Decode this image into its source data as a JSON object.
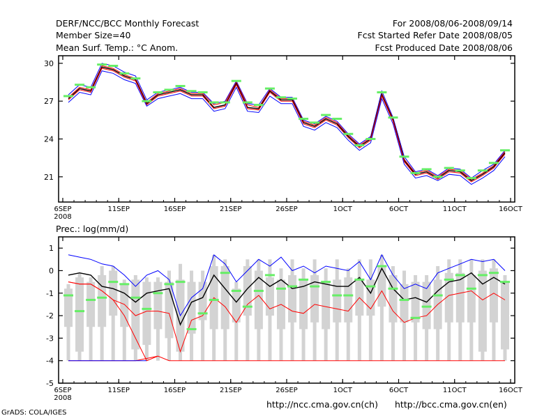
{
  "header": {
    "title": "DERF/NCC/BCC Monthly Forecast",
    "member_size": "Member Size=40",
    "variable": "Mean Surf. Temp.: °C Anom.",
    "period": "For 2008/08/06-2008/09/14",
    "started": "Fcst Started Refer Date 2008/08/05",
    "produced": "Fcst Produced Date 2008/08/06"
  },
  "footer": {
    "credit": "GrADS: COLA/IGES",
    "url_ncc": "http://ncc.cma.gov.cn(ch)",
    "url_bcc": "http://bcc.cma.gov.cn(en)"
  },
  "colors": {
    "mean_line": "#000000",
    "upper_line": "#0000ff",
    "lower_line": "#ff0000",
    "marker": "#66ee66",
    "box": "#d3d3d3"
  },
  "chart_data": [
    {
      "type": "line",
      "title": "Mean Surf. Temp.: °C Anom.",
      "xlabel": "",
      "ylabel": "",
      "days": 40,
      "x_ticks": [
        {
          "day": 0,
          "label": "6SEP",
          "sub": "2008"
        },
        {
          "day": 5,
          "label": "11SEP"
        },
        {
          "day": 10,
          "label": "16SEP"
        },
        {
          "day": 15,
          "label": "21SEP"
        },
        {
          "day": 20,
          "label": "26SEP"
        },
        {
          "day": 25,
          "label": "1OCT"
        },
        {
          "day": 30,
          "label": "6OCT"
        },
        {
          "day": 35,
          "label": "11OCT"
        },
        {
          "day": 40,
          "label": "16OCT"
        }
      ],
      "y_ticks": [
        21,
        24,
        27,
        30
      ],
      "ylim": [
        19.0,
        30.6
      ],
      "series": [
        {
          "name": "upper",
          "color": "#0000ff",
          "values": [
            27.5,
            28.3,
            28.1,
            30.0,
            29.8,
            29.3,
            29.0,
            27.1,
            27.7,
            27.9,
            28.1,
            27.7,
            27.7,
            26.8,
            27.0,
            28.6,
            26.8,
            26.7,
            28.0,
            27.3,
            27.3,
            25.5,
            25.2,
            25.8,
            25.4,
            24.4,
            23.6,
            24.2,
            27.8,
            25.7,
            22.6,
            21.4,
            21.6,
            21.1,
            21.7,
            21.6,
            20.9,
            21.5,
            22.0,
            23.1
          ]
        },
        {
          "name": "mean_upper",
          "color": "#ff0000",
          "values": [
            27.3,
            28.1,
            27.9,
            29.8,
            29.6,
            29.1,
            28.8,
            26.9,
            27.6,
            27.8,
            28.0,
            27.6,
            27.6,
            26.7,
            26.9,
            28.5,
            26.7,
            26.5,
            27.9,
            27.2,
            27.2,
            25.4,
            25.1,
            25.7,
            25.3,
            24.3,
            23.5,
            24.1,
            27.6,
            25.6,
            22.4,
            21.3,
            21.5,
            21.0,
            21.6,
            21.5,
            20.8,
            21.3,
            21.9,
            23.0
          ]
        },
        {
          "name": "mean",
          "color": "#000000",
          "values": [
            27.2,
            28.0,
            27.8,
            29.7,
            29.5,
            29.0,
            28.7,
            26.8,
            27.5,
            27.7,
            27.9,
            27.5,
            27.5,
            26.5,
            26.7,
            28.4,
            26.5,
            26.4,
            27.8,
            27.1,
            27.1,
            25.3,
            25.0,
            25.6,
            25.2,
            24.2,
            23.4,
            24.0,
            27.5,
            25.5,
            22.3,
            21.2,
            21.4,
            20.9,
            21.5,
            21.4,
            20.7,
            21.2,
            21.8,
            22.9
          ]
        },
        {
          "name": "mean_lower",
          "color": "#ff0000",
          "values": [
            27.1,
            27.9,
            27.7,
            29.6,
            29.4,
            28.9,
            28.6,
            26.7,
            27.4,
            27.6,
            27.8,
            27.4,
            27.4,
            26.4,
            26.6,
            28.3,
            26.4,
            26.3,
            27.7,
            27.0,
            27.0,
            25.2,
            24.9,
            25.5,
            25.1,
            24.1,
            23.3,
            23.9,
            27.4,
            25.4,
            22.2,
            21.1,
            21.3,
            20.8,
            21.4,
            21.3,
            20.6,
            21.1,
            21.7,
            22.8
          ]
        },
        {
          "name": "lower",
          "color": "#0000ff",
          "values": [
            26.9,
            27.7,
            27.5,
            29.4,
            29.2,
            28.7,
            28.4,
            26.6,
            27.2,
            27.4,
            27.6,
            27.2,
            27.2,
            26.2,
            26.4,
            28.1,
            26.2,
            26.1,
            27.4,
            26.8,
            26.8,
            25.0,
            24.7,
            25.3,
            24.9,
            23.9,
            23.1,
            23.7,
            27.2,
            25.2,
            22.0,
            20.9,
            21.1,
            20.7,
            21.2,
            21.1,
            20.4,
            20.9,
            21.5,
            22.6
          ]
        }
      ],
      "markers": [
        27.4,
        28.3,
        28.1,
        29.9,
        29.8,
        29.2,
        28.8,
        27.0,
        27.7,
        27.9,
        28.2,
        27.8,
        27.7,
        26.9,
        26.9,
        28.6,
        26.9,
        26.7,
        28.0,
        27.3,
        27.2,
        25.6,
        25.3,
        25.9,
        25.6,
        24.4,
        23.5,
        24.0,
        27.7,
        25.7,
        22.6,
        21.3,
        21.6,
        21.0,
        21.7,
        21.5,
        20.9,
        21.5,
        22.1,
        23.1
      ]
    },
    {
      "type": "line",
      "title": "Prec.: log(mm/d)",
      "xlabel": "",
      "ylabel": "",
      "days": 40,
      "x_ticks": [
        {
          "day": 0,
          "label": "6SEP",
          "sub": "2008"
        },
        {
          "day": 5,
          "label": "11SEP"
        },
        {
          "day": 10,
          "label": "16SEP"
        },
        {
          "day": 15,
          "label": "21SEP"
        },
        {
          "day": 20,
          "label": "26SEP"
        },
        {
          "day": 25,
          "label": "1OCT"
        },
        {
          "day": 30,
          "label": "6OCT"
        },
        {
          "day": 35,
          "label": "11OCT"
        },
        {
          "day": 40,
          "label": "16OCT"
        }
      ],
      "y_ticks": [
        -5,
        -4,
        -3,
        -2,
        -1,
        0,
        1
      ],
      "ylim": [
        -5,
        1.5
      ],
      "boxes": {
        "whisker_low": [
          -4.0,
          -4.0,
          -4.0,
          -4.0,
          -4.0,
          -4.0,
          -4.0,
          -4.0,
          -4.0,
          -4.0,
          -4.0,
          -4.0,
          -4.0,
          -4.0,
          -4.0,
          -4.0,
          -4.0,
          -4.0,
          -4.0,
          -4.0,
          -4.0,
          -4.0,
          -4.0,
          -4.0,
          -4.0,
          -4.0,
          -4.0,
          -4.0,
          -4.0,
          -4.0,
          -4.0,
          -4.0,
          -4.0,
          -4.0,
          -4.0,
          -4.0,
          -4.0,
          -4.0,
          -4.0,
          -4.0
        ],
        "box_low": [
          -2.5,
          -3.6,
          -2.5,
          -2.5,
          -2.0,
          -2.5,
          -3.5,
          -3.3,
          -2.6,
          -3.0,
          -3.6,
          -2.8,
          -2.2,
          -2.6,
          -2.6,
          -2.3,
          -2.0,
          -2.6,
          -2.0,
          -2.6,
          -2.3,
          -2.6,
          -2.3,
          -2.6,
          -2.3,
          -2.3,
          -2.0,
          -2.0,
          -1.6,
          -2.3,
          -2.3,
          -2.3,
          -2.6,
          -2.6,
          -2.3,
          -2.3,
          -2.3,
          -3.6,
          -2.3,
          -3.5
        ],
        "box_high": [
          -0.8,
          -0.3,
          -0.5,
          -0.2,
          0.0,
          -0.6,
          -0.4,
          -0.5,
          -0.5,
          -0.5,
          -0.4,
          -0.5,
          -0.5,
          0.2,
          0.2,
          -0.8,
          0.2,
          0.0,
          -0.3,
          -0.4,
          -0.2,
          -0.4,
          -0.2,
          -0.5,
          -0.4,
          -0.3,
          -0.4,
          -0.4,
          0.2,
          -0.2,
          -0.6,
          -0.5,
          -0.5,
          -0.4,
          -0.1,
          -0.1,
          -0.2,
          0.0,
          0.1,
          -0.5
        ],
        "whisker_high": [
          -0.6,
          -0.1,
          -0.3,
          0.2,
          0.2,
          -0.4,
          -0.2,
          -0.3,
          -0.3,
          0.0,
          0.3,
          0.0,
          0.0,
          0.7,
          0.5,
          -0.5,
          0.5,
          0.5,
          0.5,
          0.1,
          0.5,
          0.1,
          0.5,
          0.1,
          0.5,
          0.1,
          0.5,
          0.5,
          0.7,
          0.2,
          0.0,
          -0.2,
          -0.2,
          0.2,
          0.5,
          0.5,
          0.5,
          0.5,
          0.5,
          -0.2
        ]
      },
      "series": [
        {
          "name": "upper",
          "color": "#0000ff",
          "values": [
            0.7,
            0.6,
            0.5,
            0.3,
            0.2,
            -0.2,
            -0.7,
            -0.2,
            0.0,
            -0.4,
            -2.0,
            -1.2,
            -0.8,
            0.7,
            0.3,
            -0.5,
            0.0,
            0.5,
            0.2,
            0.6,
            0.0,
            0.2,
            -0.1,
            0.2,
            0.1,
            0.0,
            0.4,
            -0.4,
            0.7,
            -0.2,
            -0.8,
            -0.6,
            -0.8,
            -0.1,
            0.1,
            0.3,
            0.5,
            0.4,
            0.5,
            0.0
          ]
        },
        {
          "name": "mean",
          "color": "#000000",
          "values": [
            -0.2,
            -0.1,
            -0.2,
            -0.7,
            -0.8,
            -1.0,
            -1.4,
            -1.0,
            -0.9,
            -0.8,
            -2.4,
            -1.4,
            -1.2,
            -0.2,
            -0.8,
            -1.4,
            -0.8,
            -0.3,
            -0.7,
            -0.4,
            -0.8,
            -0.7,
            -0.5,
            -0.6,
            -0.7,
            -0.7,
            -0.3,
            -1.0,
            0.1,
            -0.8,
            -1.3,
            -1.2,
            -1.4,
            -0.9,
            -0.5,
            -0.4,
            -0.1,
            -0.6,
            -0.3,
            -0.6
          ]
        },
        {
          "name": "lower",
          "color": "#ff0000",
          "values": [
            -0.5,
            -0.6,
            -0.6,
            -0.9,
            -1.3,
            -1.5,
            -2.0,
            -1.8,
            -1.8,
            -1.9,
            -3.6,
            -2.2,
            -2.0,
            -1.2,
            -1.6,
            -2.3,
            -1.5,
            -1.1,
            -1.7,
            -1.5,
            -1.8,
            -1.9,
            -1.5,
            -1.6,
            -1.7,
            -1.8,
            -1.2,
            -1.7,
            -0.9,
            -1.8,
            -2.3,
            -2.1,
            -2.0,
            -1.5,
            -1.1,
            -1.0,
            -0.9,
            -1.3,
            -1.0,
            -1.3
          ]
        },
        {
          "name": "floor_red",
          "color": "#ff0000",
          "values": [
            -4.0,
            -4.0,
            -4.0,
            -4.0,
            -4.0,
            -4.0,
            -4.0,
            -3.9,
            -3.8,
            -4.0,
            -4.0,
            -4.0,
            -4.0,
            -4.0,
            -4.0,
            -4.0,
            -4.0,
            -4.0,
            -4.0,
            -4.0,
            -4.0,
            -4.0,
            -4.0,
            -4.0,
            -4.0,
            -4.0,
            -4.0,
            -4.0,
            -4.0,
            -4.0,
            -4.0,
            -4.0,
            -4.0,
            -4.0,
            -4.0,
            -4.0,
            -4.0,
            -4.0,
            -4.0,
            -4.0
          ]
        },
        {
          "name": "floor_blue",
          "color": "#0000ff",
          "values": [
            -4.0,
            -4.0,
            -4.0,
            -4.0,
            -4.0,
            -4.0,
            -4.0,
            -4.0
          ]
        }
      ],
      "lower_extra": {
        "days": [
          0,
          1,
          2,
          3,
          4,
          5,
          6,
          7,
          8
        ],
        "values": [
          -0.5,
          -0.6,
          -0.6,
          -0.9,
          -1.3,
          -2.0,
          -3.0,
          -4.0,
          -3.8
        ]
      },
      "markers": [
        -1.1,
        -1.8,
        -1.3,
        -1.2,
        -0.5,
        -0.6,
        -1.2,
        -1.7,
        -1.0,
        -0.6,
        -0.5,
        -2.6,
        -1.9,
        -1.3,
        -0.1,
        -0.9,
        -1.6,
        -0.9,
        -0.2,
        -0.8,
        -0.7,
        -0.4,
        -0.7,
        -0.5,
        -1.1,
        -1.1,
        -0.4,
        -0.7,
        0.2,
        -0.8,
        -1.3,
        -2.1,
        -1.6,
        -1.1,
        -0.4,
        -0.2,
        -0.8,
        -0.2,
        -0.1,
        -0.5
      ]
    }
  ]
}
